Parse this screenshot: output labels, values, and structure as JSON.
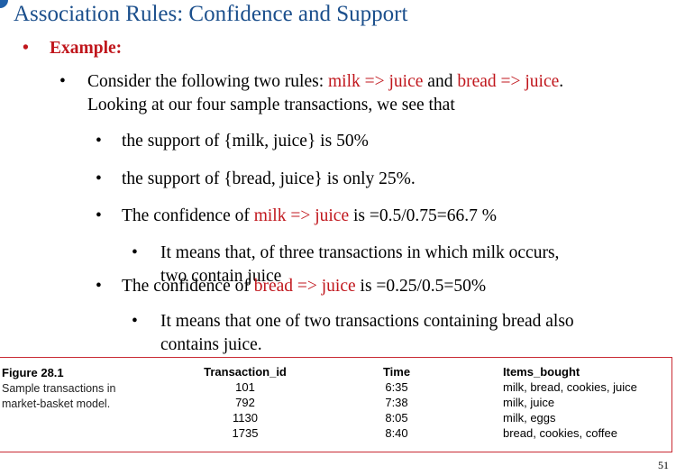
{
  "title": "Association Rules: Confidence and Support",
  "example_label": "Example:",
  "bullets": {
    "intro_a": "Consider the following two rules: ",
    "rule1": "milk => juice",
    "and": " and ",
    "rule2": "bread => juice",
    "dot": ".",
    "intro_b": "Looking at our four sample transactions, we see that",
    "support1": "the support of {milk, juice} is 50%",
    "support2": "the support of {bread, juice} is only 25%.",
    "conf1_a": "The confidence of ",
    "conf1_rule": "milk => juice",
    "conf1_b": " is =0.5/0.75=66.7 %",
    "conf1_expl_a": "It means that, of three transactions in which milk occurs,",
    "conf1_expl_b": "two contain juice",
    "conf2_a": "The confidence of ",
    "conf2_rule": "bread => juice",
    "conf2_b": " is =0.25/0.5=50%",
    "conf2_expl_a": "It means that one of two transactions containing bread also",
    "conf2_expl_b": "contains juice."
  },
  "figure": {
    "number": "Figure 28.1",
    "caption_line1": "Sample transactions in",
    "caption_line2": "market-basket model.",
    "headers": [
      "Transaction_id",
      "Time",
      "Items_bought"
    ],
    "rows": [
      [
        "101",
        "6:35",
        "milk, bread, cookies, juice"
      ],
      [
        "792",
        "7:38",
        "milk, juice"
      ],
      [
        "1130",
        "8:05",
        "milk, eggs"
      ],
      [
        "1735",
        "8:40",
        "bread, cookies, coffee"
      ]
    ]
  },
  "page_number": "51"
}
